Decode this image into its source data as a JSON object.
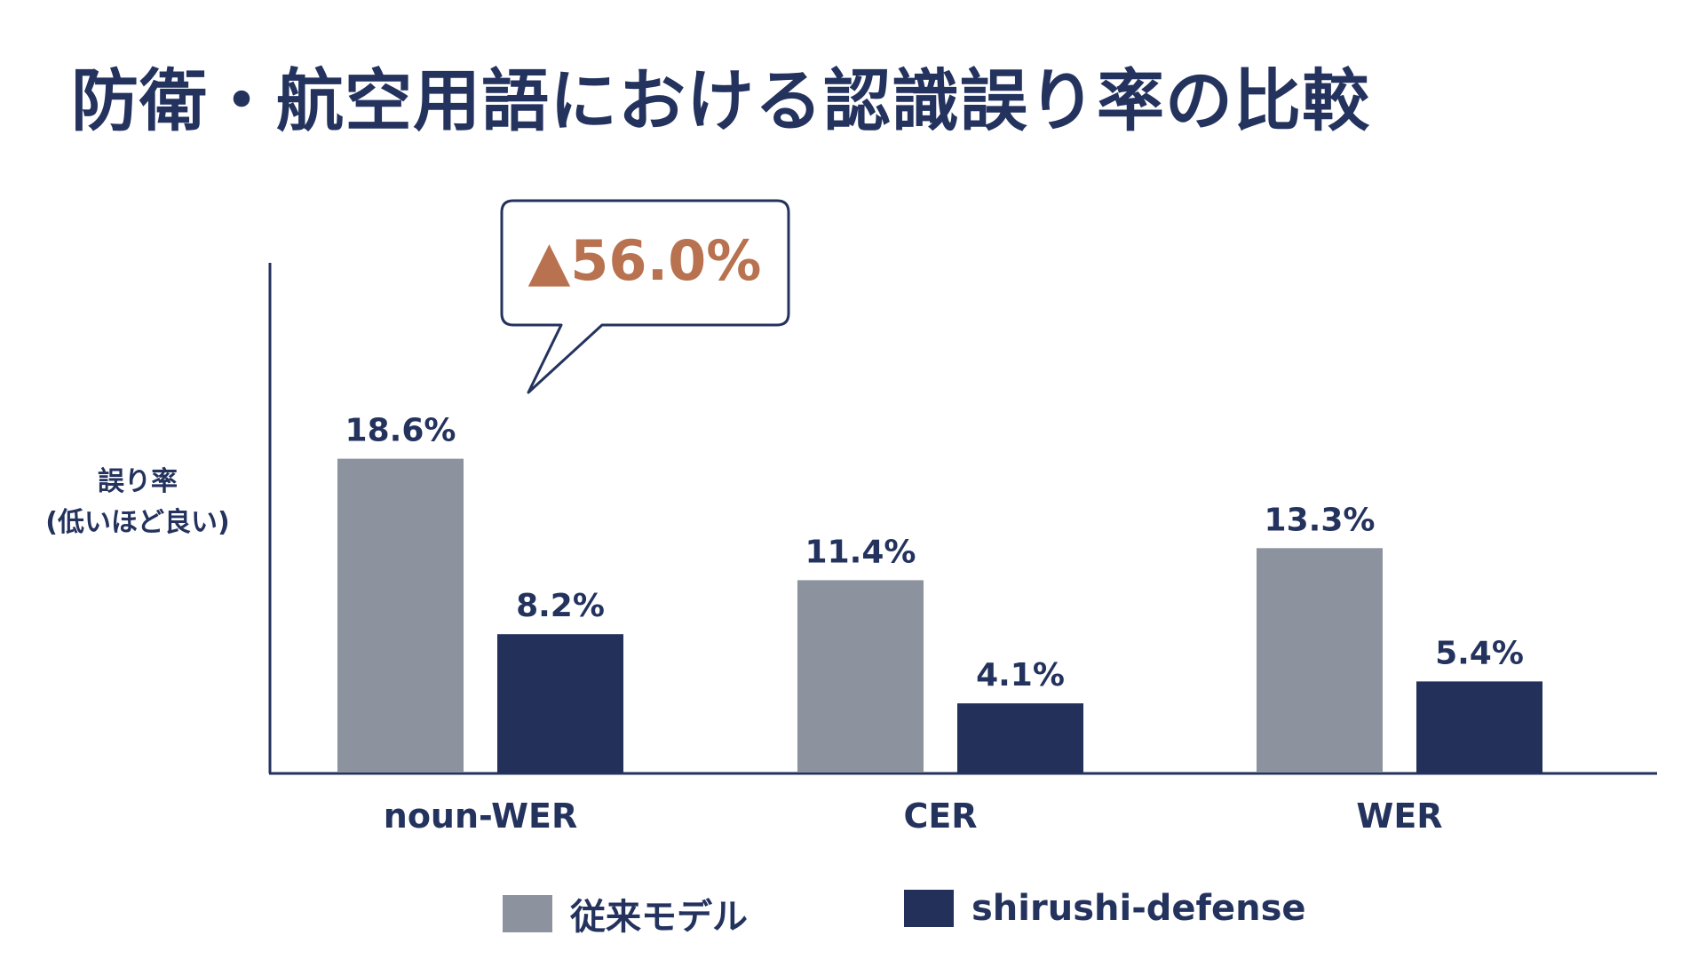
{
  "title": "防衛・航空用語における認識誤り率の比較",
  "chart_data": {
    "type": "bar",
    "categories": [
      "noun-WER",
      "CER",
      "WER"
    ],
    "series": [
      {
        "name": "従来モデル",
        "values": [
          18.6,
          11.4,
          13.3
        ],
        "labels": [
          "18.6%",
          "11.4%",
          "13.3%"
        ],
        "color": "#8c939e"
      },
      {
        "name": "shirushi-defense",
        "values": [
          8.2,
          4.1,
          5.4
        ],
        "labels": [
          "8.2%",
          "4.1%",
          "5.4%"
        ],
        "color": "#23305a"
      }
    ],
    "ylabel": [
      "誤り率",
      "(低いほど良い)"
    ],
    "ylim": [
      0,
      22
    ],
    "grid": false,
    "legend_position": "bottom",
    "annotation": {
      "text": "▲56.0%",
      "category": "noun-WER",
      "color": "#b8724f"
    }
  }
}
